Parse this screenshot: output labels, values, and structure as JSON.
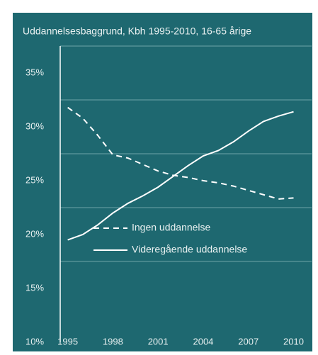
{
  "chart_data": {
    "type": "line",
    "title": "Uddannelsesbaggrund, Kbh 1995-2010, 16-65 årige",
    "x": [
      1995,
      1996,
      1997,
      1998,
      1999,
      2000,
      2001,
      2002,
      2003,
      2004,
      2005,
      2006,
      2007,
      2008,
      2009,
      2010
    ],
    "series": [
      {
        "name": "Ingen uddannelse",
        "color": "#ffffff",
        "dash": true,
        "values": [
          31.8,
          30.8,
          29.2,
          27.4,
          27.1,
          26.5,
          25.9,
          25.5,
          25.3,
          25.0,
          24.8,
          24.5,
          24.1,
          23.7,
          23.3,
          23.4
        ]
      },
      {
        "name": "Videregående uddannelse",
        "color": "#ffffff",
        "dash": false,
        "values": [
          19.5,
          20.0,
          20.9,
          22.0,
          22.9,
          23.6,
          24.4,
          25.4,
          26.4,
          27.3,
          27.8,
          28.6,
          29.6,
          30.5,
          31.0,
          31.4
        ]
      }
    ],
    "xlim": [
      1994.5,
      2011.2
    ],
    "xticks": [
      1995,
      1998,
      2001,
      2004,
      2007,
      2010
    ],
    "ylim": [
      10,
      37.5
    ],
    "yticks": [
      {
        "value": 10,
        "label": "10%"
      },
      {
        "value": 15,
        "label": "15%"
      },
      {
        "value": 20,
        "label": "20%"
      },
      {
        "value": 25,
        "label": "25%"
      },
      {
        "value": 30,
        "label": "30%"
      },
      {
        "value": 35,
        "label": "35%"
      }
    ],
    "ygrid": [
      17.5,
      22.5,
      27.5,
      32.5,
      37.5
    ],
    "background": "#1e6870"
  }
}
